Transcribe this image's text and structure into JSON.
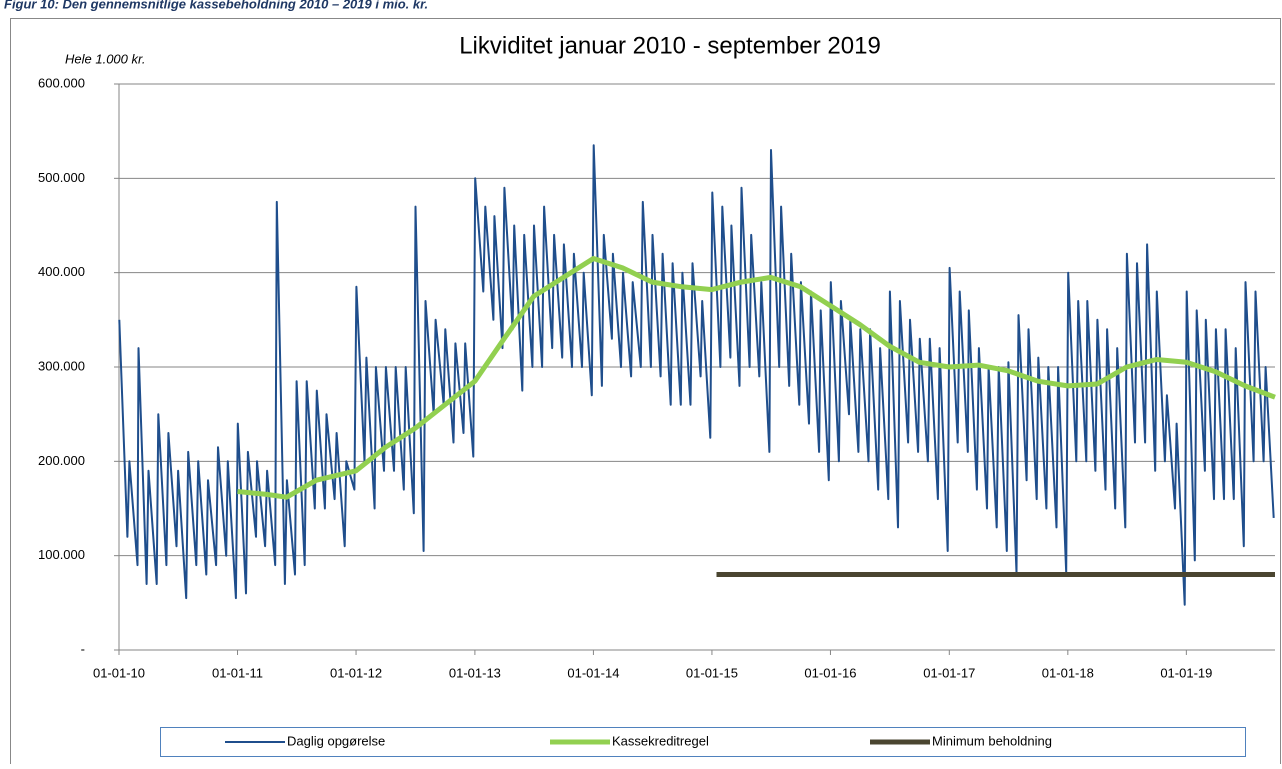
{
  "caption": "Figur 10: Den gennemsnitlige kassebeholdning 2010 – 2019 i mio. kr.",
  "chart_data": {
    "type": "line",
    "title": "Likviditet januar 2010 - september 2019",
    "y_unit_label": "Hele 1.000 kr.",
    "xlim": [
      "2010-01-01",
      "2019-10-01"
    ],
    "xticks": [
      {
        "value": "2010-01-01",
        "label": "01-01-10"
      },
      {
        "value": "2011-01-01",
        "label": "01-01-11"
      },
      {
        "value": "2012-01-01",
        "label": "01-01-12"
      },
      {
        "value": "2013-01-01",
        "label": "01-01-13"
      },
      {
        "value": "2014-01-01",
        "label": "01-01-14"
      },
      {
        "value": "2015-01-01",
        "label": "01-01-15"
      },
      {
        "value": "2016-01-01",
        "label": "01-01-16"
      },
      {
        "value": "2017-01-01",
        "label": "01-01-17"
      },
      {
        "value": "2018-01-01",
        "label": "01-01-18"
      },
      {
        "value": "2019-01-01",
        "label": "01-01-19"
      }
    ],
    "ylim": [
      0,
      600000
    ],
    "yticks": [
      {
        "value": 0,
        "label": "-"
      },
      {
        "value": 100000,
        "label": "100.000"
      },
      {
        "value": 200000,
        "label": "200.000"
      },
      {
        "value": 300000,
        "label": "300.000"
      },
      {
        "value": 400000,
        "label": "400.000"
      },
      {
        "value": 500000,
        "label": "500.000"
      },
      {
        "value": 600000,
        "label": "600.000"
      }
    ],
    "grid": true,
    "legend": "bottom",
    "series": [
      {
        "name": "Daglig opgørelse",
        "color": "#1f4e8c",
        "width": 2,
        "x": [
          "2010-01-02",
          "2010-01-27",
          "2010-02-02",
          "2010-02-27",
          "2010-03-02",
          "2010-03-27",
          "2010-04-02",
          "2010-04-27",
          "2010-05-02",
          "2010-05-27",
          "2010-06-02",
          "2010-06-27",
          "2010-07-02",
          "2010-07-27",
          "2010-08-02",
          "2010-08-27",
          "2010-09-02",
          "2010-09-27",
          "2010-10-02",
          "2010-10-27",
          "2010-11-02",
          "2010-11-27",
          "2010-12-02",
          "2010-12-27",
          "2011-01-02",
          "2011-01-27",
          "2011-02-02",
          "2011-02-27",
          "2011-03-02",
          "2011-03-27",
          "2011-04-02",
          "2011-04-27",
          "2011-05-02",
          "2011-05-27",
          "2011-06-02",
          "2011-06-27",
          "2011-07-02",
          "2011-07-27",
          "2011-08-02",
          "2011-08-27",
          "2011-09-02",
          "2011-09-27",
          "2011-10-02",
          "2011-10-27",
          "2011-11-02",
          "2011-11-27",
          "2011-12-02",
          "2011-12-27",
          "2012-01-02",
          "2012-01-27",
          "2012-02-02",
          "2012-02-27",
          "2012-03-02",
          "2012-03-27",
          "2012-04-02",
          "2012-04-27",
          "2012-05-02",
          "2012-05-27",
          "2012-06-02",
          "2012-06-27",
          "2012-07-02",
          "2012-07-27",
          "2012-08-02",
          "2012-08-27",
          "2012-09-02",
          "2012-09-27",
          "2012-10-02",
          "2012-10-27",
          "2012-11-02",
          "2012-11-27",
          "2012-12-02",
          "2012-12-27",
          "2013-01-02",
          "2013-01-27",
          "2013-02-02",
          "2013-02-27",
          "2013-03-02",
          "2013-03-27",
          "2013-04-02",
          "2013-04-27",
          "2013-05-02",
          "2013-05-27",
          "2013-06-02",
          "2013-06-27",
          "2013-07-02",
          "2013-07-27",
          "2013-08-02",
          "2013-08-27",
          "2013-09-02",
          "2013-09-27",
          "2013-10-02",
          "2013-10-27",
          "2013-11-02",
          "2013-11-27",
          "2013-12-02",
          "2013-12-27",
          "2014-01-02",
          "2014-01-27",
          "2014-02-02",
          "2014-02-27",
          "2014-03-02",
          "2014-03-27",
          "2014-04-02",
          "2014-04-27",
          "2014-05-02",
          "2014-05-27",
          "2014-06-02",
          "2014-06-27",
          "2014-07-02",
          "2014-07-27",
          "2014-08-02",
          "2014-08-27",
          "2014-09-02",
          "2014-09-27",
          "2014-10-02",
          "2014-10-27",
          "2014-11-02",
          "2014-11-27",
          "2014-12-02",
          "2014-12-27",
          "2015-01-02",
          "2015-01-27",
          "2015-02-02",
          "2015-02-27",
          "2015-03-02",
          "2015-03-27",
          "2015-04-02",
          "2015-04-27",
          "2015-05-02",
          "2015-05-27",
          "2015-06-02",
          "2015-06-27",
          "2015-07-02",
          "2015-07-27",
          "2015-08-02",
          "2015-08-27",
          "2015-09-02",
          "2015-09-27",
          "2015-10-02",
          "2015-10-27",
          "2015-11-02",
          "2015-11-27",
          "2015-12-02",
          "2015-12-27",
          "2016-01-02",
          "2016-01-27",
          "2016-02-02",
          "2016-02-27",
          "2016-03-02",
          "2016-03-27",
          "2016-04-02",
          "2016-04-27",
          "2016-05-02",
          "2016-05-27",
          "2016-06-02",
          "2016-06-27",
          "2016-07-02",
          "2016-07-27",
          "2016-08-02",
          "2016-08-27",
          "2016-09-02",
          "2016-09-27",
          "2016-10-02",
          "2016-10-27",
          "2016-11-02",
          "2016-11-27",
          "2016-12-02",
          "2016-12-27",
          "2017-01-02",
          "2017-01-27",
          "2017-02-02",
          "2017-02-27",
          "2017-03-02",
          "2017-03-27",
          "2017-04-02",
          "2017-04-27",
          "2017-05-02",
          "2017-05-27",
          "2017-06-02",
          "2017-06-27",
          "2017-07-02",
          "2017-07-27",
          "2017-08-02",
          "2017-08-27",
          "2017-09-02",
          "2017-09-27",
          "2017-10-02",
          "2017-10-27",
          "2017-11-02",
          "2017-11-27",
          "2017-12-02",
          "2017-12-27",
          "2018-01-02",
          "2018-01-27",
          "2018-02-02",
          "2018-02-27",
          "2018-03-02",
          "2018-03-27",
          "2018-04-02",
          "2018-04-27",
          "2018-05-02",
          "2018-05-27",
          "2018-06-02",
          "2018-06-27",
          "2018-07-02",
          "2018-07-27",
          "2018-08-02",
          "2018-08-27",
          "2018-09-02",
          "2018-09-27",
          "2018-10-02",
          "2018-10-27",
          "2018-11-02",
          "2018-11-27",
          "2018-12-02",
          "2018-12-27",
          "2019-01-02",
          "2019-01-27",
          "2019-02-02",
          "2019-02-27",
          "2019-03-02",
          "2019-03-27",
          "2019-04-02",
          "2019-04-27",
          "2019-05-02",
          "2019-05-27",
          "2019-06-02",
          "2019-06-27",
          "2019-07-02",
          "2019-07-27",
          "2019-08-02",
          "2019-08-27",
          "2019-09-02",
          "2019-09-27"
        ],
        "values": [
          350000,
          120000,
          200000,
          90000,
          320000,
          70000,
          190000,
          70000,
          250000,
          90000,
          230000,
          110000,
          190000,
          55000,
          210000,
          90000,
          200000,
          80000,
          180000,
          90000,
          215000,
          100000,
          200000,
          55000,
          240000,
          60000,
          210000,
          120000,
          200000,
          110000,
          190000,
          90000,
          475000,
          70000,
          180000,
          80000,
          285000,
          90000,
          285000,
          150000,
          275000,
          150000,
          250000,
          160000,
          230000,
          110000,
          200000,
          170000,
          385000,
          200000,
          310000,
          150000,
          300000,
          190000,
          300000,
          190000,
          300000,
          170000,
          300000,
          145000,
          470000,
          105000,
          370000,
          250000,
          350000,
          260000,
          340000,
          220000,
          325000,
          230000,
          325000,
          205000,
          500000,
          380000,
          470000,
          350000,
          460000,
          320000,
          490000,
          340000,
          450000,
          275000,
          440000,
          300000,
          450000,
          300000,
          470000,
          320000,
          440000,
          310000,
          430000,
          300000,
          420000,
          300000,
          400000,
          270000,
          535000,
          280000,
          440000,
          330000,
          420000,
          300000,
          400000,
          290000,
          390000,
          300000,
          475000,
          300000,
          440000,
          290000,
          420000,
          260000,
          410000,
          260000,
          400000,
          260000,
          410000,
          290000,
          370000,
          225000,
          485000,
          300000,
          470000,
          310000,
          450000,
          280000,
          490000,
          300000,
          440000,
          290000,
          390000,
          210000,
          530000,
          300000,
          470000,
          280000,
          420000,
          260000,
          390000,
          240000,
          380000,
          210000,
          360000,
          180000,
          390000,
          200000,
          370000,
          250000,
          350000,
          210000,
          340000,
          200000,
          340000,
          170000,
          320000,
          160000,
          380000,
          130000,
          370000,
          220000,
          350000,
          210000,
          330000,
          200000,
          330000,
          160000,
          320000,
          105000,
          405000,
          220000,
          380000,
          210000,
          360000,
          170000,
          320000,
          150000,
          300000,
          130000,
          300000,
          105000,
          305000,
          82000,
          355000,
          180000,
          340000,
          160000,
          310000,
          150000,
          300000,
          130000,
          300000,
          82000,
          400000,
          200000,
          370000,
          200000,
          370000,
          190000,
          350000,
          170000,
          340000,
          150000,
          320000,
          130000,
          420000,
          220000,
          410000,
          220000,
          430000,
          190000,
          380000,
          200000,
          270000,
          150000,
          240000,
          48000,
          380000,
          95000,
          360000,
          190000,
          350000,
          160000,
          340000,
          160000,
          340000,
          160000,
          320000,
          110000,
          390000,
          200000,
          380000,
          200000,
          300000,
          140000
        ]
      },
      {
        "name": "Kassekreditregel",
        "color": "#92d050",
        "width": 5,
        "x": [
          "2011-01-01",
          "2011-04-01",
          "2011-06-01",
          "2011-09-01",
          "2012-01-01",
          "2012-04-01",
          "2012-07-01",
          "2012-10-01",
          "2013-01-01",
          "2013-04-01",
          "2013-07-01",
          "2013-10-01",
          "2014-01-01",
          "2014-04-01",
          "2014-07-01",
          "2014-10-01",
          "2015-01-01",
          "2015-04-01",
          "2015-07-01",
          "2015-10-01",
          "2016-01-01",
          "2016-04-01",
          "2016-07-01",
          "2016-10-01",
          "2017-01-01",
          "2017-04-01",
          "2017-07-01",
          "2017-10-01",
          "2018-01-01",
          "2018-04-01",
          "2018-07-01",
          "2018-10-01",
          "2019-01-01",
          "2019-04-01",
          "2019-07-01",
          "2019-10-01"
        ],
        "values": [
          168000,
          165000,
          162000,
          180000,
          190000,
          215000,
          235000,
          260000,
          285000,
          330000,
          375000,
          395000,
          415000,
          405000,
          390000,
          385000,
          382000,
          390000,
          395000,
          385000,
          365000,
          345000,
          322000,
          305000,
          300000,
          302000,
          296000,
          285000,
          280000,
          282000,
          300000,
          308000,
          305000,
          295000,
          280000,
          268000
        ]
      },
      {
        "name": "Minimum beholdning",
        "color": "#4a4530",
        "width": 5,
        "x": [
          "2015-01-15",
          "2019-10-01"
        ],
        "values": [
          80000,
          80000
        ]
      }
    ]
  }
}
